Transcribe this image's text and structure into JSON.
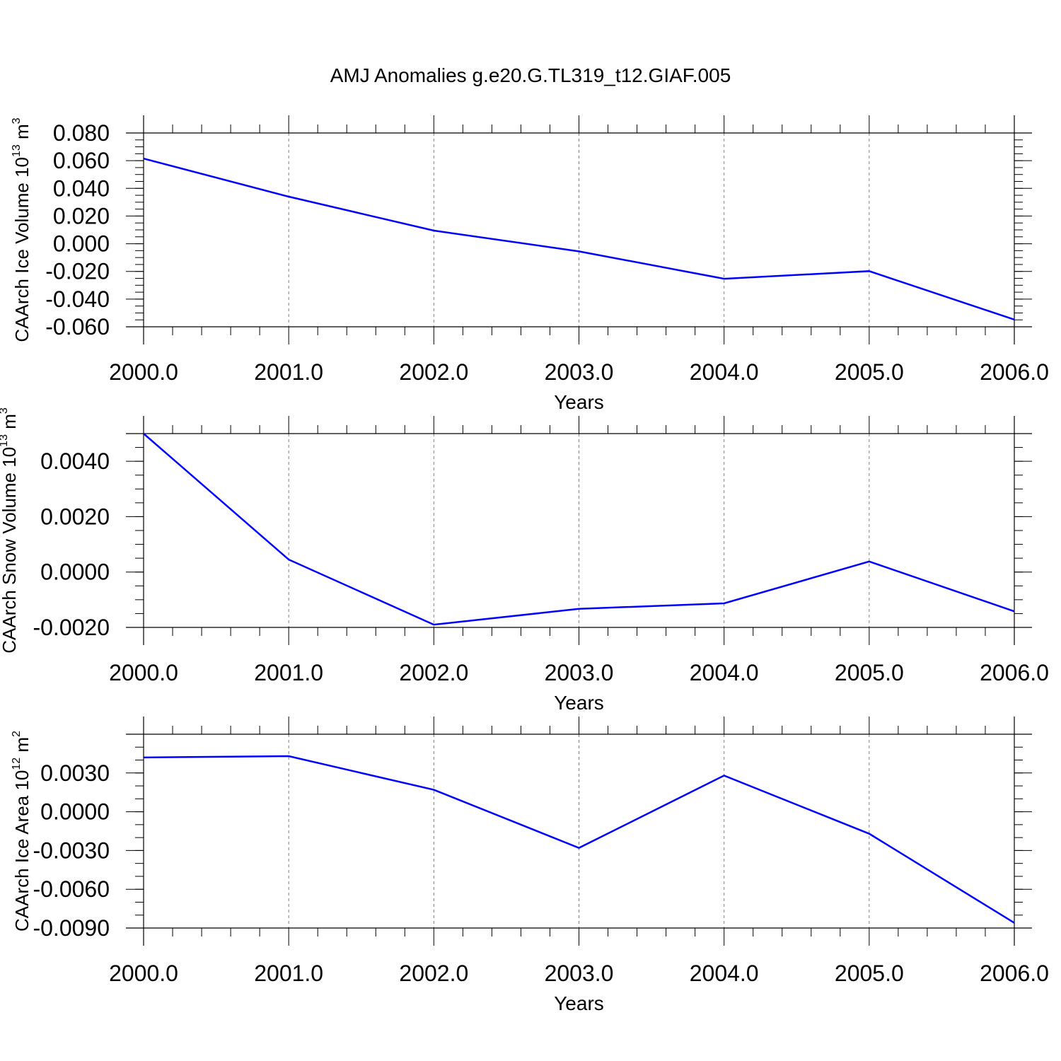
{
  "figure": {
    "title": "AMJ Anomalies g.e20.G.TL319_t12.GIAF.005"
  },
  "chart_data": [
    {
      "type": "line",
      "title": "",
      "xlabel": "Years",
      "ylabel": "CAArch Ice Volume 10",
      "ylabel_exp": "13",
      "ylabel_unit": "m",
      "ylabel_unit_exp": "3",
      "x": [
        2000,
        2001,
        2002,
        2003,
        2004,
        2005,
        2006
      ],
      "x_ticks": [
        "2000.0",
        "2001.0",
        "2002.0",
        "2003.0",
        "2004.0",
        "2005.0",
        "2006.0"
      ],
      "xlim": [
        2000,
        2006
      ],
      "ylim": [
        -0.06,
        0.08
      ],
      "y_ticks": [
        0.08,
        0.06,
        0.04,
        0.02,
        0.0,
        -0.02,
        -0.04,
        -0.06
      ],
      "y_tick_labels": [
        "0.080",
        "0.060",
        "0.040",
        "0.020",
        "0.000",
        "-0.020",
        "-0.040",
        "-0.060"
      ],
      "y_minor_step": 0.005,
      "grid": "vertical dashed at years",
      "line_color": "#0000ff",
      "series": [
        {
          "values": [
            0.0615,
            0.034,
            0.0095,
            -0.0055,
            -0.0253,
            -0.0198,
            -0.0548
          ]
        }
      ]
    },
    {
      "type": "line",
      "title": "",
      "xlabel": "Years",
      "ylabel": "CAArch Snow Volume 10",
      "ylabel_exp": "13",
      "ylabel_unit": "m",
      "ylabel_unit_exp": "3",
      "x": [
        2000,
        2001,
        2002,
        2003,
        2004,
        2005,
        2006
      ],
      "x_ticks": [
        "2000.0",
        "2001.0",
        "2002.0",
        "2003.0",
        "2004.0",
        "2005.0",
        "2006.0"
      ],
      "xlim": [
        2000,
        2006
      ],
      "ylim": [
        -0.002,
        0.005
      ],
      "y_ticks": [
        0.004,
        0.002,
        0.0,
        -0.002
      ],
      "y_tick_labels": [
        "0.0040",
        "0.0020",
        "0.0000",
        "-0.0020"
      ],
      "y_minor_step": 0.0005,
      "grid": "vertical dashed at years",
      "line_color": "#0000ff",
      "series": [
        {
          "values": [
            0.005,
            0.00045,
            -0.0019,
            -0.00133,
            -0.00113,
            0.00038,
            -0.00142
          ]
        }
      ]
    },
    {
      "type": "line",
      "title": "",
      "xlabel": "Years",
      "ylabel": "CAArch Ice Area 10",
      "ylabel_exp": "12",
      "ylabel_unit": "m",
      "ylabel_unit_exp": "2",
      "x": [
        2000,
        2001,
        2002,
        2003,
        2004,
        2005,
        2006
      ],
      "x_ticks": [
        "2000.0",
        "2001.0",
        "2002.0",
        "2003.0",
        "2004.0",
        "2005.0",
        "2006.0"
      ],
      "xlim": [
        2000,
        2006
      ],
      "ylim": [
        -0.009,
        0.006
      ],
      "y_ticks": [
        0.003,
        0.0,
        -0.003,
        -0.006,
        -0.009
      ],
      "y_tick_labels": [
        "0.0030",
        "0.0000",
        "-0.0030",
        "-0.0060",
        "-0.0090"
      ],
      "y_minor_step": 0.001,
      "grid": "vertical dashed at years",
      "line_color": "#0000ff",
      "series": [
        {
          "values": [
            0.0042,
            0.0043,
            0.0017,
            -0.0028,
            0.0028,
            -0.0017,
            -0.0086
          ]
        }
      ]
    }
  ]
}
